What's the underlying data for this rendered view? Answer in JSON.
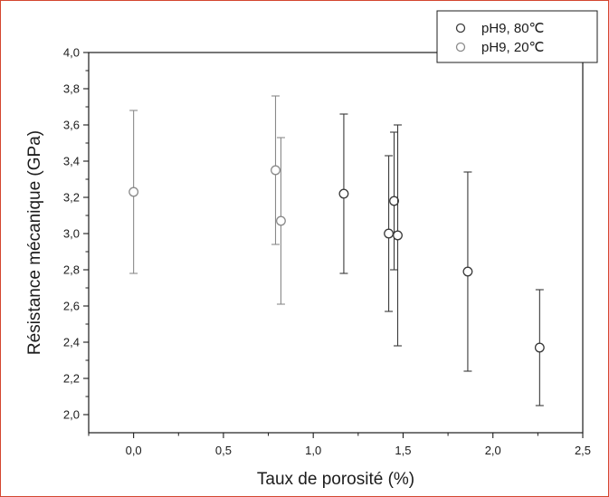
{
  "chart_data": {
    "type": "scatter",
    "title": "",
    "xlabel": "Taux de porosité (%)",
    "ylabel": "Résistance mécanique (GPa)",
    "xlim": [
      -0.25,
      2.5
    ],
    "ylim": [
      1.9,
      4.0
    ],
    "x_ticks": [
      0.0,
      0.5,
      1.0,
      1.5,
      2.0,
      2.5
    ],
    "x_tick_labels": [
      "0,0",
      "0,5",
      "1,0",
      "1,5",
      "2,0",
      "2,5"
    ],
    "y_ticks": [
      2.0,
      2.2,
      2.4,
      2.6,
      2.8,
      3.0,
      3.2,
      3.4,
      3.6,
      3.8,
      4.0
    ],
    "y_tick_labels": [
      "2,0",
      "2,2",
      "2,4",
      "2,6",
      "2,8",
      "3,0",
      "3,2",
      "3,4",
      "3,6",
      "3,8",
      "4,0"
    ],
    "grid": false,
    "legend_position": "top-right",
    "series": [
      {
        "name": "pH9, 80℃",
        "color": "#3a3a3a",
        "points": [
          {
            "x": 1.17,
            "y": 3.22,
            "y_low": 2.78,
            "y_high": 3.66
          },
          {
            "x": 1.42,
            "y": 3.0,
            "y_low": 2.57,
            "y_high": 3.43
          },
          {
            "x": 1.45,
            "y": 3.18,
            "y_low": 2.8,
            "y_high": 3.56
          },
          {
            "x": 1.47,
            "y": 2.99,
            "y_low": 2.38,
            "y_high": 3.6
          },
          {
            "x": 1.86,
            "y": 2.79,
            "y_low": 2.24,
            "y_high": 3.34
          },
          {
            "x": 2.26,
            "y": 2.37,
            "y_low": 2.05,
            "y_high": 2.69
          }
        ]
      },
      {
        "name": "pH9, 20℃",
        "color": "#8a8a8a",
        "points": [
          {
            "x": 0.0,
            "y": 3.23,
            "y_low": 2.78,
            "y_high": 3.68
          },
          {
            "x": 0.79,
            "y": 3.35,
            "y_low": 2.94,
            "y_high": 3.76
          },
          {
            "x": 0.82,
            "y": 3.07,
            "y_low": 2.61,
            "y_high": 3.53
          }
        ]
      }
    ]
  },
  "styles": {
    "frame_color": "#d4462f",
    "axis_color": "#1c1c1c"
  }
}
